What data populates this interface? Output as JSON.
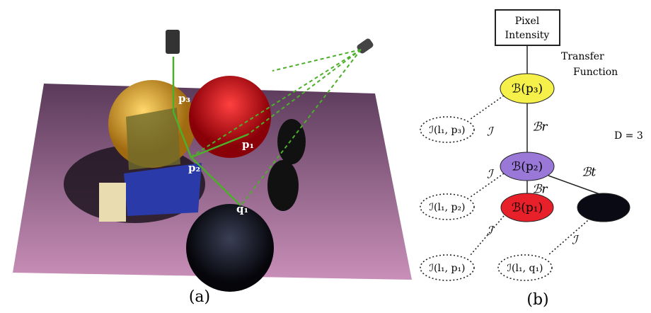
{
  "panel_a": {
    "points": [
      "p₃",
      "p₂",
      "p₁",
      "q₁"
    ],
    "caption": "(a)"
  },
  "panel_b": {
    "root": [
      "Pixel",
      "Intensity"
    ],
    "transfer": [
      "Transfer",
      "Function"
    ],
    "depth": "D = 3",
    "nodes": [
      "ℬ(p₃)",
      "ℬ(p₂)",
      "ℬ(p₁)"
    ],
    "edges": {
      "interaction": "ℐ",
      "reflect": "ℬr",
      "transmit": "ℬt"
    },
    "leaves": [
      "ℐ(l₁, p₃)",
      "ℐ(l₁, p₂)",
      "ℐ(l₁, p₁)",
      "ℐ(l₁, q₁)"
    ],
    "caption": "(b)"
  }
}
